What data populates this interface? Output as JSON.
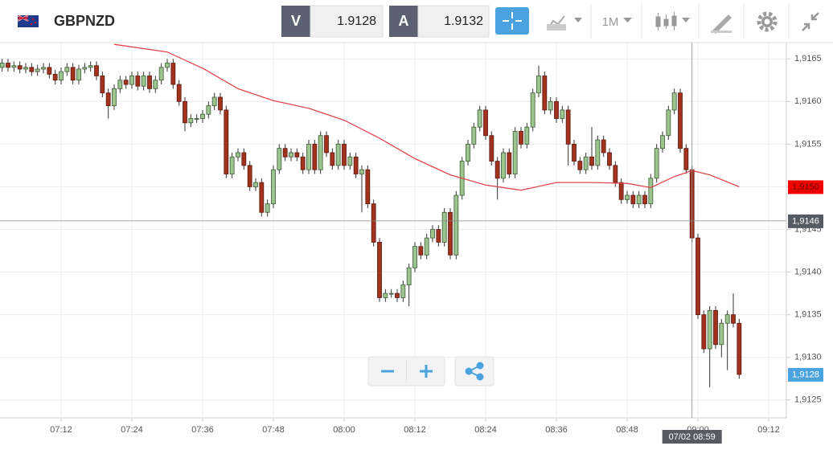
{
  "header": {
    "symbol": "GBPNZD",
    "bid_label": "V",
    "bid": "1.9128",
    "ask_label": "A",
    "ask": "1.9132",
    "timeframe": "1M"
  },
  "chart_data": {
    "type": "candlestick",
    "x": [
      "07:02",
      "07:03",
      "07:04",
      "07:05",
      "07:06",
      "07:07",
      "07:08",
      "07:09",
      "07:10",
      "07:11",
      "07:12",
      "07:13",
      "07:14",
      "07:15",
      "07:16",
      "07:17",
      "07:18",
      "07:19",
      "07:20",
      "07:21",
      "07:22",
      "07:23",
      "07:24",
      "07:25",
      "07:26",
      "07:27",
      "07:28",
      "07:29",
      "07:30",
      "07:31",
      "07:32",
      "07:33",
      "07:34",
      "07:35",
      "07:36",
      "07:37",
      "07:38",
      "07:39",
      "07:40",
      "07:41",
      "07:42",
      "07:43",
      "07:44",
      "07:45",
      "07:46",
      "07:47",
      "07:48",
      "07:49",
      "07:50",
      "07:51",
      "07:52",
      "07:53",
      "07:54",
      "07:55",
      "07:56",
      "07:57",
      "07:58",
      "07:59",
      "08:00",
      "08:01",
      "08:02",
      "08:03",
      "08:04",
      "08:05",
      "08:06",
      "08:07",
      "08:08",
      "08:09",
      "08:10",
      "08:11",
      "08:12",
      "08:13",
      "08:14",
      "08:15",
      "08:16",
      "08:17",
      "08:18",
      "08:19",
      "08:20",
      "08:21",
      "08:22",
      "08:23",
      "08:24",
      "08:25",
      "08:26",
      "08:27",
      "08:28",
      "08:29",
      "08:30",
      "08:31",
      "08:32",
      "08:33",
      "08:34",
      "08:35",
      "08:36",
      "08:37",
      "08:38",
      "08:39",
      "08:40",
      "08:41",
      "08:42",
      "08:43",
      "08:44",
      "08:45",
      "08:46",
      "08:47",
      "08:48",
      "08:49",
      "08:50",
      "08:51",
      "08:52",
      "08:53",
      "08:54",
      "08:55",
      "08:56",
      "08:57",
      "08:58",
      "08:59",
      "09:00",
      "09:01",
      "09:02",
      "09:03",
      "09:04",
      "09:05",
      "09:06",
      "09:07"
    ],
    "candles": [
      [
        1.9164,
        1.9165,
        1.91635,
        1.91645
      ],
      [
        1.91645,
        1.9165,
        1.91635,
        1.9164
      ],
      [
        1.9164,
        1.91647,
        1.91635,
        1.91642
      ],
      [
        1.91642,
        1.91647,
        1.91633,
        1.91638
      ],
      [
        1.91638,
        1.91645,
        1.91633,
        1.9164
      ],
      [
        1.9164,
        1.91645,
        1.9163,
        1.91635
      ],
      [
        1.91635,
        1.91643,
        1.9163,
        1.91638
      ],
      [
        1.91638,
        1.91645,
        1.91633,
        1.9164
      ],
      [
        1.9164,
        1.91645,
        1.91627,
        1.91632
      ],
      [
        1.91632,
        1.91637,
        1.9162,
        1.91625
      ],
      [
        1.91625,
        1.9164,
        1.9162,
        1.91635
      ],
      [
        1.91635,
        1.91645,
        1.9163,
        1.9164
      ],
      [
        1.9164,
        1.91645,
        1.9162,
        1.91625
      ],
      [
        1.91625,
        1.91643,
        1.9162,
        1.91638
      ],
      [
        1.91638,
        1.91645,
        1.91633,
        1.9164
      ],
      [
        1.9164,
        1.91647,
        1.91635,
        1.91642
      ],
      [
        1.91642,
        1.91647,
        1.91625,
        1.9163
      ],
      [
        1.9163,
        1.91635,
        1.91605,
        1.9161
      ],
      [
        1.9161,
        1.91615,
        1.9158,
        1.91595
      ],
      [
        1.91595,
        1.9162,
        1.9159,
        1.91615
      ],
      [
        1.91615,
        1.9163,
        1.9161,
        1.91625
      ],
      [
        1.91625,
        1.9163,
        1.91615,
        1.9162
      ],
      [
        1.9162,
        1.91635,
        1.91615,
        1.9163
      ],
      [
        1.9163,
        1.91635,
        1.91613,
        1.91618
      ],
      [
        1.91618,
        1.91635,
        1.91613,
        1.9163
      ],
      [
        1.9163,
        1.91635,
        1.9161,
        1.91615
      ],
      [
        1.91615,
        1.9163,
        1.9161,
        1.91625
      ],
      [
        1.91625,
        1.91645,
        1.9162,
        1.9164
      ],
      [
        1.9164,
        1.9165,
        1.91635,
        1.91645
      ],
      [
        1.91645,
        1.9165,
        1.91615,
        1.9162
      ],
      [
        1.9162,
        1.91625,
        1.91595,
        1.916
      ],
      [
        1.916,
        1.91605,
        1.91565,
        1.91575
      ],
      [
        1.91575,
        1.91585,
        1.9157,
        1.9158
      ],
      [
        1.9158,
        1.91585,
        1.91575,
        1.9158
      ],
      [
        1.9158,
        1.9159,
        1.91575,
        1.91585
      ],
      [
        1.91585,
        1.916,
        1.9158,
        1.91595
      ],
      [
        1.91595,
        1.9161,
        1.9159,
        1.91605
      ],
      [
        1.91605,
        1.9161,
        1.91585,
        1.9159
      ],
      [
        1.9159,
        1.91595,
        1.9151,
        1.91515
      ],
      [
        1.91515,
        1.9154,
        1.9151,
        1.91535
      ],
      [
        1.91535,
        1.91545,
        1.9153,
        1.9154
      ],
      [
        1.9154,
        1.91545,
        1.9152,
        1.91525
      ],
      [
        1.91525,
        1.9153,
        1.91495,
        1.915
      ],
      [
        1.915,
        1.9151,
        1.91495,
        1.91505
      ],
      [
        1.91505,
        1.9151,
        1.91465,
        1.9147
      ],
      [
        1.9147,
        1.91485,
        1.91465,
        1.9148
      ],
      [
        1.9148,
        1.91525,
        1.91475,
        1.9152
      ],
      [
        1.9152,
        1.9155,
        1.91515,
        1.91545
      ],
      [
        1.91545,
        1.9155,
        1.9153,
        1.91535
      ],
      [
        1.91535,
        1.91545,
        1.9153,
        1.9154
      ],
      [
        1.9154,
        1.91545,
        1.9153,
        1.91535
      ],
      [
        1.91535,
        1.9154,
        1.91515,
        1.9152
      ],
      [
        1.9152,
        1.91555,
        1.91515,
        1.9155
      ],
      [
        1.9155,
        1.91555,
        1.91515,
        1.9152
      ],
      [
        1.9152,
        1.91565,
        1.91515,
        1.9156
      ],
      [
        1.9156,
        1.91565,
        1.91535,
        1.9154
      ],
      [
        1.9154,
        1.91545,
        1.9152,
        1.91525
      ],
      [
        1.91525,
        1.91555,
        1.9152,
        1.9155
      ],
      [
        1.9155,
        1.91555,
        1.9152,
        1.91525
      ],
      [
        1.91525,
        1.9154,
        1.9152,
        1.91535
      ],
      [
        1.91535,
        1.9154,
        1.9151,
        1.91515
      ],
      [
        1.91515,
        1.91525,
        1.9147,
        1.9152
      ],
      [
        1.9152,
        1.91525,
        1.91475,
        1.9148
      ],
      [
        1.9148,
        1.91485,
        1.9143,
        1.91435
      ],
      [
        1.91435,
        1.9144,
        1.91365,
        1.9137
      ],
      [
        1.9137,
        1.9138,
        1.91365,
        1.91375
      ],
      [
        1.91375,
        1.9138,
        1.9137,
        1.91375
      ],
      [
        1.91375,
        1.9138,
        1.91365,
        1.9137
      ],
      [
        1.9137,
        1.9139,
        1.91365,
        1.91385
      ],
      [
        1.91385,
        1.9141,
        1.9136,
        1.91405
      ],
      [
        1.91405,
        1.91435,
        1.914,
        1.9143
      ],
      [
        1.9143,
        1.91435,
        1.91415,
        1.9142
      ],
      [
        1.9142,
        1.91445,
        1.91415,
        1.9144
      ],
      [
        1.9144,
        1.91455,
        1.91435,
        1.9145
      ],
      [
        1.9145,
        1.91455,
        1.9143,
        1.91435
      ],
      [
        1.91435,
        1.91475,
        1.9143,
        1.9147
      ],
      [
        1.9147,
        1.91475,
        1.91415,
        1.9142
      ],
      [
        1.9142,
        1.91495,
        1.91415,
        1.9149
      ],
      [
        1.9149,
        1.91535,
        1.91485,
        1.9153
      ],
      [
        1.9153,
        1.91555,
        1.91525,
        1.9155
      ],
      [
        1.9155,
        1.91575,
        1.91545,
        1.9157
      ],
      [
        1.9157,
        1.91595,
        1.91565,
        1.9159
      ],
      [
        1.9159,
        1.91595,
        1.91555,
        1.9156
      ],
      [
        1.9156,
        1.91565,
        1.91525,
        1.9153
      ],
      [
        1.9153,
        1.91535,
        1.91485,
        1.9151
      ],
      [
        1.9151,
        1.91545,
        1.91505,
        1.9154
      ],
      [
        1.9154,
        1.91545,
        1.9151,
        1.91515
      ],
      [
        1.91515,
        1.9157,
        1.9151,
        1.91565
      ],
      [
        1.91565,
        1.9157,
        1.91545,
        1.9155
      ],
      [
        1.9155,
        1.91575,
        1.91545,
        1.9157
      ],
      [
        1.9157,
        1.91615,
        1.91565,
        1.9161
      ],
      [
        1.9161,
        1.91642,
        1.91605,
        1.9163
      ],
      [
        1.9163,
        1.91635,
        1.91585,
        1.9159
      ],
      [
        1.9159,
        1.91605,
        1.91585,
        1.916
      ],
      [
        1.916,
        1.91605,
        1.91575,
        1.9158
      ],
      [
        1.9158,
        1.91595,
        1.91575,
        1.9159
      ],
      [
        1.9159,
        1.91595,
        1.91525,
        1.9155
      ],
      [
        1.9155,
        1.91555,
        1.91525,
        1.9153
      ],
      [
        1.9153,
        1.91535,
        1.91515,
        1.9152
      ],
      [
        1.9152,
        1.9154,
        1.91515,
        1.91535
      ],
      [
        1.91535,
        1.9157,
        1.9152,
        1.91525
      ],
      [
        1.91525,
        1.9156,
        1.9152,
        1.91555
      ],
      [
        1.91555,
        1.9156,
        1.91535,
        1.9154
      ],
      [
        1.9154,
        1.91545,
        1.9152,
        1.91525
      ],
      [
        1.91525,
        1.9153,
        1.915,
        1.91505
      ],
      [
        1.91505,
        1.9151,
        1.9148,
        1.91485
      ],
      [
        1.91485,
        1.91495,
        1.9148,
        1.9149
      ],
      [
        1.9149,
        1.91495,
        1.91475,
        1.9148
      ],
      [
        1.9148,
        1.91495,
        1.91475,
        1.9149
      ],
      [
        1.9149,
        1.91495,
        1.91475,
        1.9148
      ],
      [
        1.9148,
        1.91515,
        1.91475,
        1.9151
      ],
      [
        1.9151,
        1.9155,
        1.91505,
        1.91545
      ],
      [
        1.91545,
        1.91565,
        1.9154,
        1.9156
      ],
      [
        1.9156,
        1.91595,
        1.91555,
        1.9159
      ],
      [
        1.9159,
        1.91615,
        1.91585,
        1.9161
      ],
      [
        1.9161,
        1.91615,
        1.9154,
        1.91545
      ],
      [
        1.91545,
        1.9155,
        1.91515,
        1.9152
      ],
      [
        1.9152,
        1.91525,
        1.91435,
        1.9144
      ],
      [
        1.9144,
        1.91445,
        1.91345,
        1.9135
      ],
      [
        1.9135,
        1.91355,
        1.91305,
        1.9131
      ],
      [
        1.9131,
        1.9136,
        1.91265,
        1.91355
      ],
      [
        1.91355,
        1.9136,
        1.9131,
        1.91315
      ],
      [
        1.91315,
        1.91345,
        1.913,
        1.9134
      ],
      [
        1.9134,
        1.91355,
        1.91285,
        1.9135
      ],
      [
        1.9135,
        1.91375,
        1.91335,
        1.9134
      ],
      [
        1.9134,
        1.91345,
        1.91275,
        1.9128
      ]
    ],
    "up_color": "#9cc48e",
    "down_color": "#a2311d",
    "ma": {
      "color": "#e0474c",
      "x": [
        "07:21",
        "07:30",
        "07:36",
        "07:42",
        "07:48",
        "07:54",
        "08:00",
        "08:06",
        "08:12",
        "08:18",
        "08:24",
        "08:30",
        "08:36",
        "08:42",
        "08:48",
        "08:52",
        "08:56",
        "08:59",
        "09:02",
        "09:07"
      ],
      "values": [
        1.91667,
        1.91658,
        1.91639,
        1.91615,
        1.91601,
        1.91592,
        1.91578,
        1.91557,
        1.91533,
        1.91514,
        1.91502,
        1.91496,
        1.91505,
        1.91505,
        1.91504,
        1.91499,
        1.91512,
        1.91519,
        1.91514,
        1.915
      ]
    },
    "xlim": [
      "07:00",
      "09:12"
    ],
    "xticks": [
      "07:12",
      "07:24",
      "07:36",
      "07:48",
      "08:00",
      "08:12",
      "08:24",
      "08:36",
      "08:48",
      "09:00",
      "09:12"
    ],
    "ylim": [
      1.9123,
      1.9167
    ],
    "yticks": [
      {
        "value": 1.9125,
        "label": "1,9125"
      },
      {
        "value": 1.913,
        "label": "1,9130"
      },
      {
        "value": 1.9135,
        "label": "1,9135"
      },
      {
        "value": 1.914,
        "label": "1,9140"
      },
      {
        "value": 1.9145,
        "label": "1,9145"
      },
      {
        "value": 1.915,
        "label": "1,9150"
      },
      {
        "value": 1.9155,
        "label": "1,9155"
      },
      {
        "value": 1.916,
        "label": "1,9160"
      },
      {
        "value": 1.9165,
        "label": "1,9165"
      }
    ],
    "grid": true,
    "price_labels": [
      {
        "value": 1.915,
        "label": "1,9150",
        "color": "#f00000"
      },
      {
        "value": 1.9146,
        "label": "1,9146",
        "color": "#555a63"
      },
      {
        "value": 1.9128,
        "label": "1,9128",
        "color": "#4aa3df"
      }
    ],
    "crosshair": {
      "x": "08:59",
      "x_label": "07/02 08:59",
      "y": 1.9146
    }
  }
}
